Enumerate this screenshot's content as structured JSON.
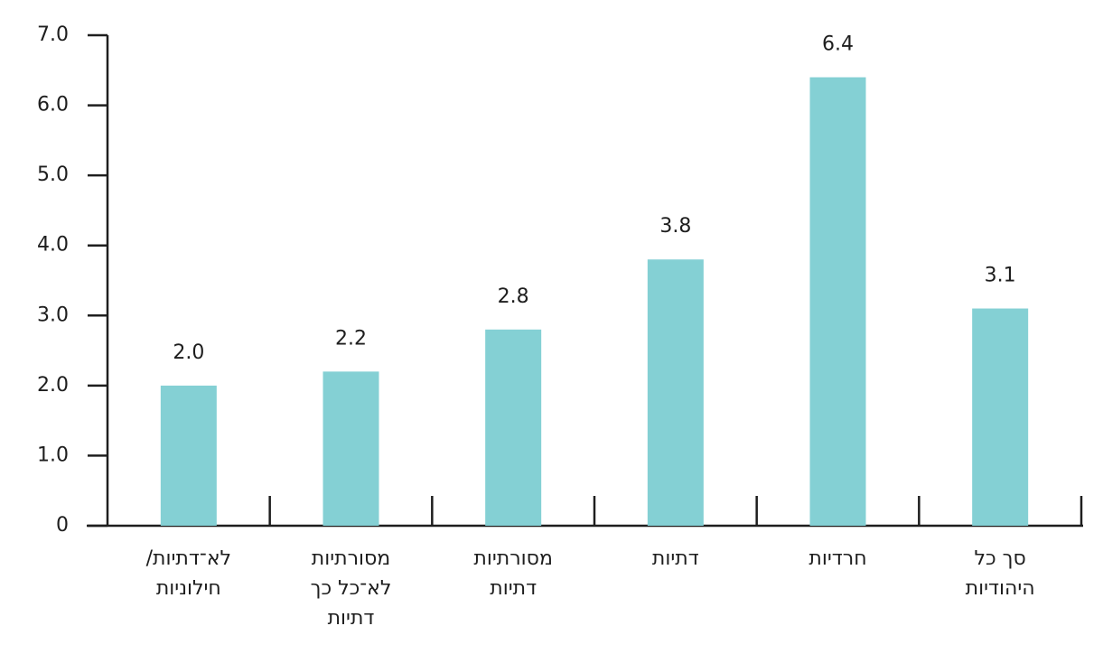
{
  "chart_data": {
    "type": "bar",
    "categories": [
      [
        "לא־דתיות/",
        "חילוניות"
      ],
      [
        "מסורתיות",
        "לא־כל כך",
        "דתיות"
      ],
      [
        "מסורתיות",
        "דתיות"
      ],
      [
        "דתיות"
      ],
      [
        "חרדיות"
      ],
      [
        "סך כל",
        "היהודיות"
      ]
    ],
    "values": [
      2.0,
      2.2,
      2.8,
      3.8,
      6.4,
      3.1
    ],
    "value_labels": [
      "2.0",
      "2.2",
      "2.8",
      "3.8",
      "6.4",
      "3.1"
    ],
    "color": "#84d0d4",
    "ylim": [
      0,
      7
    ],
    "yticks": [
      0,
      {
        "value": 1,
        "label": "1.0"
      },
      {
        "value": 2,
        "label": "2.0"
      },
      {
        "value": 3,
        "label": "3.0"
      },
      {
        "value": 4,
        "label": "4.0"
      },
      {
        "value": 5,
        "label": "5.0"
      },
      {
        "value": 6,
        "label": "6.0"
      },
      {
        "value": 7,
        "label": "7.0"
      }
    ]
  }
}
